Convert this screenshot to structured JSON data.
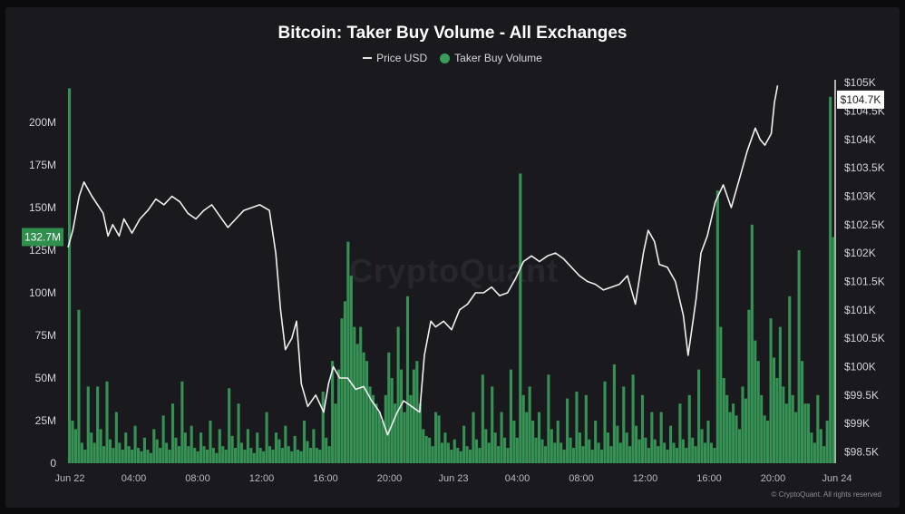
{
  "chart_data": {
    "type": "bar+line",
    "title": "Bitcoin: Taker Buy Volume - All Exchanges",
    "legend": [
      {
        "name": "Price USD",
        "color": "#e6e6e6",
        "kind": "line"
      },
      {
        "name": "Taker Buy Volume",
        "color": "#3a9e5a",
        "kind": "dot"
      }
    ],
    "legend_position": "top-center",
    "x_ticks": [
      "Jun 22",
      "04:00",
      "08:00",
      "12:00",
      "16:00",
      "20:00",
      "Jun 23",
      "04:00",
      "08:00",
      "12:00",
      "16:00",
      "20:00",
      "Jun 24"
    ],
    "x_range_hours": [
      0,
      48
    ],
    "y_left_ticks": [
      "0",
      "25M",
      "50M",
      "75M",
      "100M",
      "125M",
      "150M",
      "175M",
      "200M"
    ],
    "y_left_range": [
      0,
      225000000
    ],
    "y_right_ticks": [
      "$98.5K",
      "$99K",
      "$99.5K",
      "$100K",
      "$100.5K",
      "$101K",
      "$101.5K",
      "$102K",
      "$102.5K",
      "$103K",
      "$103.5K",
      "$104K",
      "$104.5K",
      "$105K"
    ],
    "y_right_range": [
      98300,
      105050
    ],
    "current_volume_label": "132.7M",
    "current_price_label": "$104.7K",
    "grid": false,
    "series": [
      {
        "name": "Price USD",
        "axis": "right",
        "points": [
          [
            0,
            102100
          ],
          [
            0.3,
            102400
          ],
          [
            0.7,
            103000
          ],
          [
            1.0,
            103250
          ],
          [
            1.5,
            103000
          ],
          [
            2.2,
            102700
          ],
          [
            2.5,
            102300
          ],
          [
            2.8,
            102500
          ],
          [
            3.2,
            102300
          ],
          [
            3.5,
            102600
          ],
          [
            4.0,
            102350
          ],
          [
            4.5,
            102600
          ],
          [
            5.0,
            102750
          ],
          [
            5.5,
            102950
          ],
          [
            6.0,
            102850
          ],
          [
            6.5,
            103000
          ],
          [
            7.0,
            102900
          ],
          [
            7.5,
            102700
          ],
          [
            8.0,
            102600
          ],
          [
            8.5,
            102750
          ],
          [
            9.0,
            102850
          ],
          [
            9.5,
            102650
          ],
          [
            10.0,
            102450
          ],
          [
            10.5,
            102600
          ],
          [
            11.0,
            102750
          ],
          [
            11.5,
            102800
          ],
          [
            12.0,
            102850
          ],
          [
            12.6,
            102750
          ],
          [
            13.0,
            102000
          ],
          [
            13.3,
            101000
          ],
          [
            13.6,
            100300
          ],
          [
            14.0,
            100500
          ],
          [
            14.3,
            100800
          ],
          [
            14.6,
            99700
          ],
          [
            15.0,
            99300
          ],
          [
            15.5,
            99500
          ],
          [
            16.0,
            99200
          ],
          [
            16.3,
            99700
          ],
          [
            16.6,
            100000
          ],
          [
            17.0,
            99800
          ],
          [
            17.5,
            99800
          ],
          [
            18.0,
            99600
          ],
          [
            18.5,
            99650
          ],
          [
            19.0,
            99400
          ],
          [
            19.5,
            99200
          ],
          [
            20.0,
            98800
          ],
          [
            20.3,
            99000
          ],
          [
            20.6,
            99200
          ],
          [
            21.0,
            99400
          ],
          [
            21.5,
            99300
          ],
          [
            22.0,
            99200
          ],
          [
            22.3,
            100200
          ],
          [
            22.7,
            100800
          ],
          [
            23.0,
            100700
          ],
          [
            23.5,
            100800
          ],
          [
            24.0,
            100650
          ],
          [
            24.5,
            101000
          ],
          [
            25.0,
            101100
          ],
          [
            25.5,
            101300
          ],
          [
            26.0,
            101300
          ],
          [
            26.5,
            101400
          ],
          [
            27.0,
            101250
          ],
          [
            27.5,
            101300
          ],
          [
            28.0,
            101550
          ],
          [
            28.5,
            101850
          ],
          [
            29.0,
            101950
          ],
          [
            29.5,
            101850
          ],
          [
            30.0,
            101950
          ],
          [
            30.5,
            102000
          ],
          [
            31.0,
            101900
          ],
          [
            31.5,
            101750
          ],
          [
            32.0,
            101600
          ],
          [
            32.5,
            101500
          ],
          [
            33.0,
            101450
          ],
          [
            33.5,
            101350
          ],
          [
            34.0,
            101400
          ],
          [
            34.5,
            101450
          ],
          [
            35.0,
            101600
          ],
          [
            35.5,
            101100
          ],
          [
            36.0,
            102000
          ],
          [
            36.3,
            102400
          ],
          [
            36.7,
            102200
          ],
          [
            37.0,
            101800
          ],
          [
            37.5,
            101750
          ],
          [
            38.0,
            101500
          ],
          [
            38.5,
            100900
          ],
          [
            38.8,
            100200
          ],
          [
            39.0,
            100600
          ],
          [
            39.3,
            101200
          ],
          [
            39.6,
            102000
          ],
          [
            40.0,
            102300
          ],
          [
            40.5,
            102900
          ],
          [
            41.0,
            103200
          ],
          [
            41.5,
            102800
          ],
          [
            42.0,
            103300
          ],
          [
            42.5,
            103800
          ],
          [
            43.0,
            104200
          ],
          [
            43.3,
            104000
          ],
          [
            43.6,
            103900
          ],
          [
            44.0,
            104100
          ],
          [
            44.2,
            104650
          ],
          [
            44.4,
            104950
          ]
        ]
      },
      {
        "name": "Taker Buy Volume",
        "axis": "left",
        "values": [
          220,
          25,
          20,
          90,
          12,
          8,
          45,
          18,
          12,
          45,
          20,
          10,
          48,
          14,
          9,
          30,
          12,
          8,
          18,
          10,
          8,
          22,
          9,
          7,
          15,
          8,
          6,
          20,
          14,
          9,
          28,
          12,
          8,
          35,
          15,
          10,
          48,
          18,
          10,
          22,
          9,
          7,
          18,
          10,
          8,
          25,
          9,
          6,
          20,
          10,
          8,
          44,
          16,
          9,
          35,
          12,
          8,
          20,
          9,
          6,
          18,
          9,
          7,
          30,
          10,
          8,
          18,
          14,
          9,
          22,
          10,
          7,
          16,
          8,
          7,
          25,
          13,
          9,
          20,
          9,
          8,
          42,
          15,
          10,
          60,
          35,
          55,
          85,
          95,
          130,
          110,
          80,
          70,
          80,
          65,
          60,
          45,
          40,
          35,
          30,
          25,
          40,
          65,
          50,
          35,
          80,
          55,
          30,
          98,
          40,
          55,
          60,
          35,
          20,
          16,
          15,
          10,
          30,
          28,
          12,
          18,
          12,
          8,
          14,
          9,
          7,
          22,
          10,
          8,
          30,
          14,
          9,
          52,
          20,
          12,
          45,
          18,
          10,
          30,
          15,
          9,
          55,
          25,
          15,
          170,
          40,
          30,
          45,
          25,
          15,
          30,
          14,
          10,
          52,
          20,
          12,
          25,
          12,
          8,
          38,
          15,
          9,
          42,
          18,
          10,
          40,
          14,
          8,
          25,
          12,
          8,
          48,
          18,
          10,
          58,
          22,
          12,
          45,
          18,
          10,
          52,
          22,
          14,
          40,
          15,
          9,
          30,
          14,
          10,
          30,
          12,
          8,
          22,
          12,
          9,
          35,
          14,
          9,
          40,
          15,
          10,
          55,
          20,
          12,
          25,
          12,
          9,
          160,
          80,
          50,
          40,
          30,
          35,
          28,
          20,
          45,
          38,
          90,
          140,
          72,
          60,
          40,
          28,
          25,
          85,
          62,
          50,
          80,
          45,
          35,
          98,
          40,
          30,
          125,
          60,
          35,
          35,
          18,
          12,
          40,
          20,
          10,
          25,
          215,
          132.7
        ]
      }
    ]
  }
}
